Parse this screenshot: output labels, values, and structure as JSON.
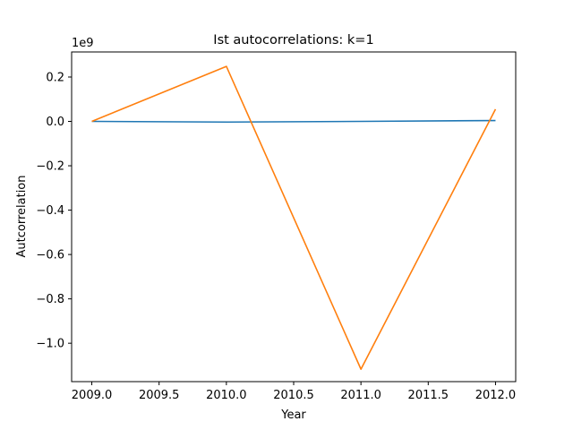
{
  "chart_data": {
    "type": "line",
    "title": "Ist autocorrelations: k=1",
    "xlabel": "Year",
    "ylabel": "Autcorrelation",
    "y_offset_label": "1e9",
    "x": [
      2009.0,
      2010.0,
      2011.0,
      2012.0
    ],
    "series": [
      {
        "values": [
          0.0,
          -0.003,
          0.0,
          0.004
        ],
        "color": "#1f77b4"
      },
      {
        "values": [
          0.0,
          0.248,
          -1.117,
          0.055
        ],
        "color": "#ff7f0e"
      }
    ],
    "xlim": [
      2008.85,
      2012.15
    ],
    "ylim": [
      -1.173,
      0.313
    ],
    "x_ticks": [
      2009.0,
      2009.5,
      2010.0,
      2010.5,
      2011.0,
      2011.5,
      2012.0
    ],
    "x_tick_labels": [
      "2009.0",
      "2009.5",
      "2010.0",
      "2010.5",
      "2011.0",
      "2011.5",
      "2012.0"
    ],
    "y_ticks": [
      0.2,
      0.0,
      -0.2,
      -0.4,
      -0.6,
      -0.8,
      -1.0
    ],
    "y_tick_labels": [
      "0.2",
      "0.0",
      "−0.2",
      "−0.4",
      "−0.6",
      "−0.8",
      "−1.0"
    ],
    "grid": false,
    "legend": "none"
  }
}
